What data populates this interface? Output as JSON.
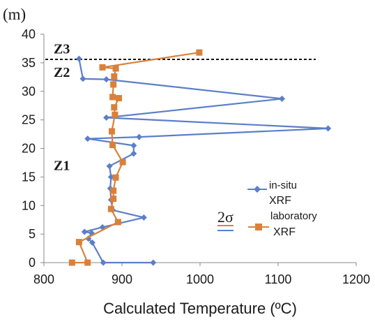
{
  "chart_data": {
    "type": "line",
    "orientation": "depth-profile",
    "xlabel": "Calculated Temperature (ºC)",
    "ylabel": "(m)",
    "xlim": [
      800,
      1200
    ],
    "ylim": [
      0,
      40
    ],
    "xticks": [
      "800",
      "900",
      "1000",
      "1100",
      "1200"
    ],
    "yticks": [
      "0",
      "5",
      "10",
      "15",
      "20",
      "25",
      "30",
      "35",
      "40"
    ],
    "grid": false,
    "legend_position": "right",
    "zone_boundary_y": 35.6,
    "zones": [
      {
        "label": "Z3",
        "y": 37.6
      },
      {
        "label": "Z2",
        "y": 33.5
      },
      {
        "label": "Z1",
        "y": 17.2
      }
    ],
    "sigma_label": "2σ",
    "legend": {
      "insitu_line1": "in-situ",
      "insitu_line2": "XRF",
      "lab_line1": "laboratory",
      "lab_line2": "XRF"
    },
    "series": [
      {
        "name": "in-situ XRF",
        "color": "#5b7fc7",
        "marker": "diamond",
        "points": [
          {
            "x": 940,
            "y": 0
          },
          {
            "x": 876,
            "y": 0
          },
          {
            "x": 862,
            "y": 3.5
          },
          {
            "x": 857,
            "y": 4.2
          },
          {
            "x": 861,
            "y": 5.2
          },
          {
            "x": 852,
            "y": 5.4
          },
          {
            "x": 875,
            "y": 6.2
          },
          {
            "x": 928,
            "y": 7.9
          },
          {
            "x": 888,
            "y": 9.2
          },
          {
            "x": 886,
            "y": 11.0
          },
          {
            "x": 885,
            "y": 13.0
          },
          {
            "x": 886,
            "y": 15.0
          },
          {
            "x": 884,
            "y": 16.9
          },
          {
            "x": 915,
            "y": 19.1
          },
          {
            "x": 915,
            "y": 20.5
          },
          {
            "x": 856,
            "y": 21.7
          },
          {
            "x": 922,
            "y": 22.0
          },
          {
            "x": 1164,
            "y": 23.5
          },
          {
            "x": 880,
            "y": 25.4
          },
          {
            "x": 1105,
            "y": 28.7
          },
          {
            "x": 880,
            "y": 32.1
          },
          {
            "x": 850,
            "y": 32.2
          },
          {
            "x": 845,
            "y": 35.7
          }
        ]
      },
      {
        "name": "laboratory XRF",
        "color": "#d9813a",
        "marker": "square",
        "points": [
          {
            "x": 836,
            "y": 0
          },
          {
            "x": 856,
            "y": 0
          },
          {
            "x": 845,
            "y": 3.6
          },
          {
            "x": 895,
            "y": 7.1
          },
          {
            "x": 886,
            "y": 9.4
          },
          {
            "x": 889,
            "y": 11.2
          },
          {
            "x": 889,
            "y": 12.6
          },
          {
            "x": 892,
            "y": 14.9
          },
          {
            "x": 901,
            "y": 17.6
          },
          {
            "x": 888,
            "y": 20.6
          },
          {
            "x": 887,
            "y": 23.0
          },
          {
            "x": 891,
            "y": 25.9
          },
          {
            "x": 890,
            "y": 27.2
          },
          {
            "x": 896,
            "y": 28.8
          },
          {
            "x": 888,
            "y": 29.0
          },
          {
            "x": 889,
            "y": 31.2
          },
          {
            "x": 890,
            "y": 32.6
          },
          {
            "x": 892,
            "y": 34.0
          },
          {
            "x": 875,
            "y": 34.2
          },
          {
            "x": 999,
            "y": 36.8
          }
        ]
      }
    ]
  }
}
